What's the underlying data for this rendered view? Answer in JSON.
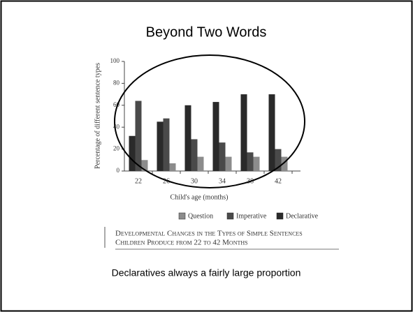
{
  "slide": {
    "title": "Beyond Two Words",
    "note": "Declaratives always a fairly large proportion"
  },
  "chart_data": {
    "type": "bar",
    "categories": [
      "22",
      "26",
      "30",
      "34",
      "38",
      "42"
    ],
    "series": [
      {
        "name": "Declarative",
        "color": "#2a2a2a",
        "values": [
          32,
          45,
          60,
          63,
          70,
          70
        ]
      },
      {
        "name": "Imperative",
        "color": "#4a4a4a",
        "values": [
          64,
          48,
          29,
          26,
          17,
          20
        ]
      },
      {
        "name": "Question",
        "color": "#8c8c8c",
        "values": [
          10,
          7,
          13,
          13,
          13,
          13
        ]
      }
    ],
    "ylim": [
      0,
      100
    ],
    "yticks": [
      0,
      20,
      40,
      60,
      80,
      100
    ],
    "y_label": "Percentage of different sentence types",
    "x_label": "Child's age (months)",
    "caption": [
      "Developmental Changes in the Types of Simple Sentences",
      "Children Produce from 22 to 42 Months"
    ]
  }
}
